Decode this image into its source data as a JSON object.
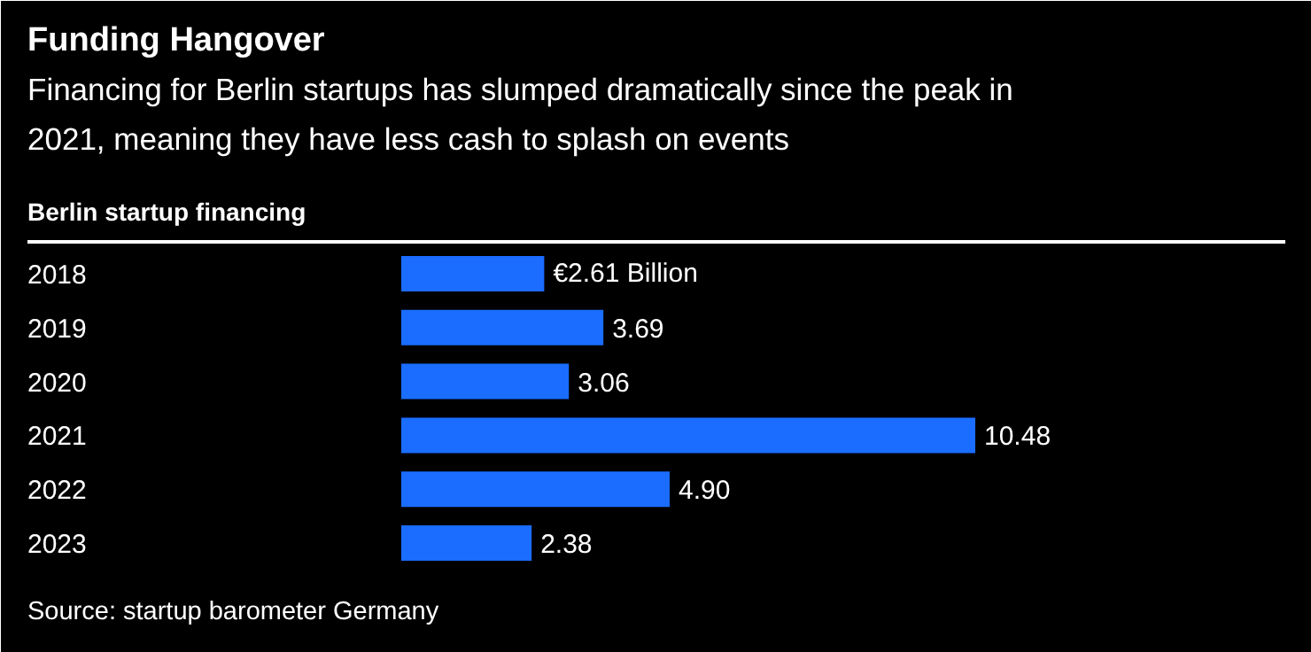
{
  "chart_data": {
    "type": "bar",
    "orientation": "horizontal",
    "title": "Funding Hangover",
    "subtitle": "Financing for Berlin startups has slumped dramatically since the peak in\n2021, meaning they have less cash to splash on events",
    "ylabel": "Berlin startup financing",
    "categories": [
      "2018",
      "2019",
      "2020",
      "2021",
      "2022",
      "2023"
    ],
    "values": [
      2.61,
      3.69,
      3.06,
      10.48,
      4.9,
      2.38
    ],
    "value_labels": [
      "€2.61 Billion",
      "3.69",
      "3.06",
      "10.48",
      "4.90",
      "2.38"
    ],
    "color": "#1a6dff",
    "annotations": [
      "Source: startup barometer Germany"
    ]
  }
}
